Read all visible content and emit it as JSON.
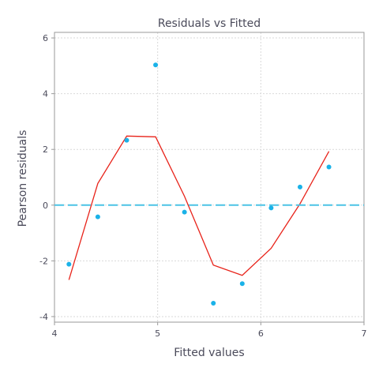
{
  "chart_data": {
    "type": "scatter",
    "title": "Residuals vs Fitted",
    "xlabel": "Fitted values",
    "ylabel": "Pearson residuals",
    "xlim": [
      4,
      7
    ],
    "ylim": [
      -4.2,
      6.2
    ],
    "xticks": [
      4,
      5,
      6,
      7
    ],
    "yticks": [
      -4,
      -2,
      0,
      2,
      4,
      6
    ],
    "grid": true,
    "colors": {
      "points": "#1ab2e8",
      "smooth": "#e8231a",
      "reference": "#4cc3e6",
      "grid": "#d9d9d9",
      "frame": "#9a9a9a",
      "text": "#4a4a5a"
    },
    "series": [
      {
        "kind": "points",
        "x": [
          4.14,
          4.42,
          4.7,
          4.98,
          5.26,
          5.54,
          5.82,
          6.1,
          6.38,
          6.66
        ],
        "y": [
          -2.12,
          -0.42,
          2.33,
          5.03,
          -0.25,
          -3.52,
          -2.82,
          -0.1,
          0.65,
          1.37
        ]
      },
      {
        "kind": "smooth-line",
        "x": [
          4.14,
          4.42,
          4.7,
          4.98,
          5.26,
          5.54,
          5.82,
          6.1,
          6.38,
          6.66
        ],
        "y": [
          -2.68,
          0.78,
          2.48,
          2.45,
          0.32,
          -2.15,
          -2.52,
          -1.55,
          0.05,
          1.93
        ]
      },
      {
        "kind": "reference-line",
        "y": 0
      }
    ]
  }
}
